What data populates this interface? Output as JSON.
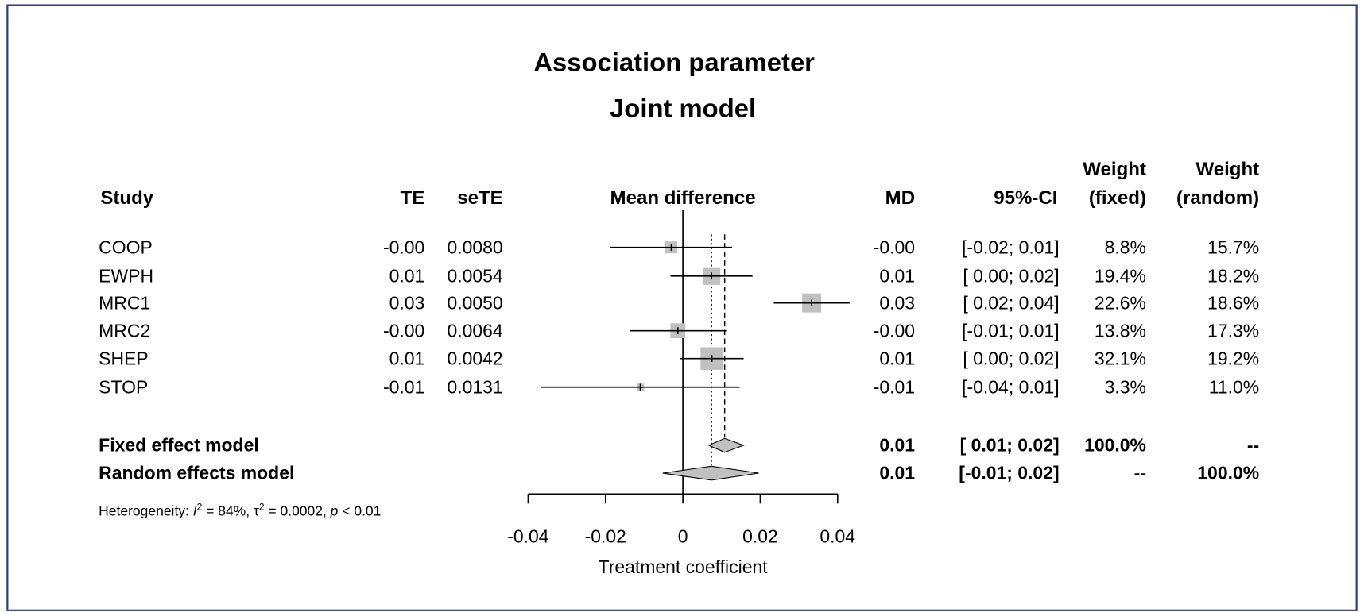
{
  "chart_data": {
    "type": "forest",
    "title": "Association parameter",
    "subtitle": "Joint model",
    "columns": {
      "study": "Study",
      "te": "TE",
      "sete": "seTE",
      "plot": "Mean difference",
      "md": "MD",
      "ci": "95%-CI",
      "weight_fixed": [
        "Weight",
        "(fixed)"
      ],
      "weight_random": [
        "Weight",
        "(random)"
      ]
    },
    "studies": [
      {
        "name": "COOP",
        "te": -0.003,
        "te_label": "-0.00",
        "sete": 0.008,
        "sete_label": "0.0080",
        "ci": [
          -0.0187,
          0.0127
        ],
        "ci_label": "[-0.02; 0.01]",
        "weight_fixed": 8.8,
        "weight_fixed_label": "8.8%",
        "weight_random": 15.7,
        "weight_random_label": "15.7%"
      },
      {
        "name": "EWPH",
        "te": 0.0074,
        "te_label": "0.01",
        "sete": 0.0054,
        "sete_label": "0.0054",
        "ci": [
          -0.0032,
          0.018
        ],
        "ci_label": "[ 0.00; 0.02]",
        "weight_fixed": 19.4,
        "weight_fixed_label": "19.4%",
        "weight_random": 18.2,
        "weight_random_label": "18.2%"
      },
      {
        "name": "MRC1",
        "te": 0.0333,
        "te_label": "0.03",
        "sete": 0.005,
        "sete_label": "0.0050",
        "ci": [
          0.0235,
          0.0431
        ],
        "ci_label": "[ 0.02; 0.04]",
        "weight_fixed": 22.6,
        "weight_fixed_label": "22.6%",
        "weight_random": 18.6,
        "weight_random_label": "18.6%"
      },
      {
        "name": "MRC2",
        "te": -0.0013,
        "te_label": "-0.00",
        "sete": 0.0064,
        "sete_label": "0.0064",
        "ci": [
          -0.0138,
          0.0112
        ],
        "ci_label": "[-0.01; 0.01]",
        "weight_fixed": 13.8,
        "weight_fixed_label": "13.8%",
        "weight_random": 17.3,
        "weight_random_label": "17.3%"
      },
      {
        "name": "SHEP",
        "te": 0.0075,
        "te_label": "0.01",
        "sete": 0.0042,
        "sete_label": "0.0042",
        "ci": [
          -0.0007,
          0.0157
        ],
        "ci_label": "[ 0.00; 0.02]",
        "weight_fixed": 32.1,
        "weight_fixed_label": "32.1%",
        "weight_random": 19.2,
        "weight_random_label": "19.2%"
      },
      {
        "name": "STOP",
        "te": -0.011,
        "te_label": "-0.01",
        "sete": 0.0131,
        "sete_label": "0.0131",
        "ci": [
          -0.0367,
          0.0147
        ],
        "ci_label": "[-0.04; 0.01]",
        "weight_fixed": 3.3,
        "weight_fixed_label": "3.3%",
        "weight_random": 11.0,
        "weight_random_label": "11.0%"
      }
    ],
    "models": [
      {
        "name": "Fixed effect model",
        "te": 0.0108,
        "te_label": "0.01",
        "ci": [
          0.0067,
          0.0157
        ],
        "ci_label": "[ 0.01; 0.02]",
        "weight_fixed": 100.0,
        "weight_fixed_label": "100.0%",
        "weight_random": null,
        "weight_random_label": "--",
        "line_style": "dashed"
      },
      {
        "name": "Random effects model",
        "te": 0.0074,
        "te_label": "0.01",
        "ci": [
          -0.0052,
          0.0196
        ],
        "ci_label": "[-0.01; 0.02]",
        "weight_fixed": null,
        "weight_fixed_label": "--",
        "weight_random": 100.0,
        "weight_random_label": "100.0%",
        "line_style": "dotted"
      }
    ],
    "heterogeneity": [
      "Heterogeneity: ",
      "I",
      "2",
      " = 84%, ",
      "τ",
      "2",
      " = 0.0002, ",
      "p",
      " < 0.01"
    ],
    "ref_line": 0,
    "xlim": [
      -0.04,
      0.04
    ],
    "xticks": [
      -0.04,
      -0.02,
      0,
      0.02,
      0.04
    ],
    "xlabel": "Treatment coefficient",
    "square_color": "#c0c0c0",
    "diamond_color": "#c0c0c0"
  }
}
